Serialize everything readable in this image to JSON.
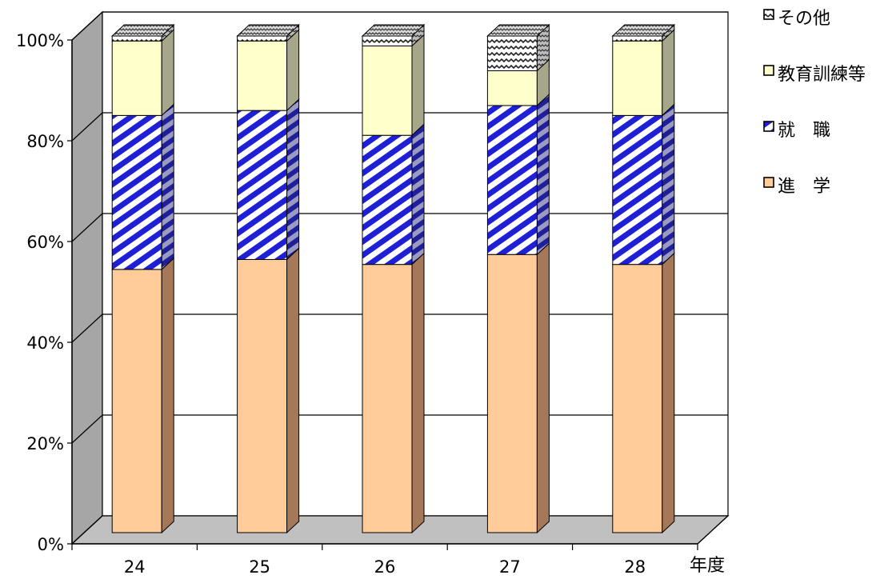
{
  "chart_data": {
    "type": "bar",
    "stacked": true,
    "style": "3d-column-percent",
    "categories": [
      "24",
      "25",
      "26",
      "27",
      "28"
    ],
    "xlabel": "年度",
    "ylabel": "",
    "ylim": [
      0,
      100
    ],
    "yticks": [
      "0%",
      "20%",
      "40%",
      "60%",
      "80%",
      "100%"
    ],
    "grid": true,
    "legend_position": "right",
    "series": [
      {
        "name": "進　学",
        "values": [
          53,
          55,
          54,
          56,
          54
        ],
        "color": "#ffcc99",
        "side_color": "#a5785a",
        "pattern": "solid"
      },
      {
        "name": "就　職",
        "values": [
          31,
          30,
          26,
          30,
          30
        ],
        "color": "#1f1fd6",
        "side_color": "#1f1f9a",
        "pattern": "diagonal-stripes"
      },
      {
        "name": "教育訓練等",
        "values": [
          15,
          14,
          18,
          7,
          15
        ],
        "color": "#ffffcc",
        "side_color": "#a6a68a",
        "pattern": "solid"
      },
      {
        "name": "その他",
        "values": [
          1,
          1,
          2,
          7,
          1
        ],
        "color": "#ffffff",
        "side_color": "#777777",
        "pattern": "wave"
      }
    ]
  }
}
